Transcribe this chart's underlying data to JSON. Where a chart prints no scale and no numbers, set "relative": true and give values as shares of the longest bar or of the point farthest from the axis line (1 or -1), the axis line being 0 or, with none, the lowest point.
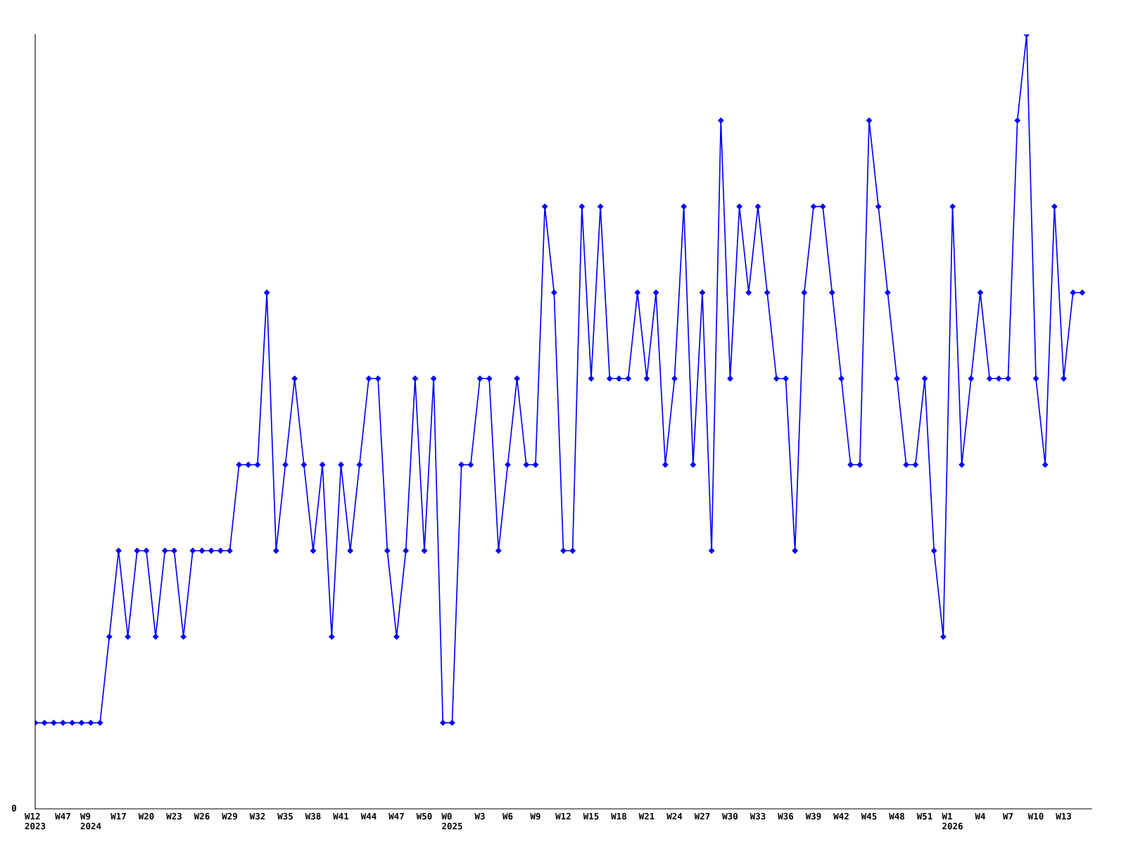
{
  "chart_data": {
    "type": "line",
    "relative": true,
    "annotations": [
      "0"
    ],
    "grid": false,
    "legend": false,
    "marker": "diamond",
    "line_style": "solid",
    "categories": [
      "W12\n2023",
      null,
      null,
      "W47",
      null,
      null,
      "W9\n2024",
      null,
      null,
      "W17",
      null,
      null,
      "W20",
      null,
      null,
      "W23",
      null,
      null,
      "W26",
      null,
      null,
      "W29",
      null,
      null,
      "W32",
      null,
      null,
      "W35",
      null,
      null,
      "W38",
      null,
      null,
      "W41",
      null,
      null,
      "W44",
      null,
      null,
      "W47",
      null,
      null,
      "W50",
      null,
      null,
      "W0\n2025",
      null,
      null,
      "W3",
      null,
      null,
      "W6",
      null,
      null,
      "W9",
      null,
      null,
      "W12",
      null,
      null,
      "W15",
      null,
      null,
      "W18",
      null,
      null,
      "W21",
      null,
      null,
      "W24",
      null,
      null,
      "W27",
      null,
      null,
      "W30",
      null,
      null,
      "W33",
      null,
      null,
      "W36",
      null,
      null,
      "W39",
      null,
      null,
      "W42",
      null,
      null,
      "W45",
      null,
      null,
      "W48",
      null,
      null,
      "W51",
      null,
      null,
      "W1\n2026",
      null,
      null,
      "W4",
      null,
      null,
      "W7",
      null,
      null,
      "W10",
      null,
      null,
      "W13",
      null,
      null
    ],
    "series": [
      {
        "color": "#0000ff",
        "values": [
          0.1111,
          0.1111,
          0.1111,
          0.1111,
          0.1111,
          0.1111,
          0.1111,
          0.1111,
          0.2222,
          0.3333,
          0.2222,
          0.3333,
          0.3333,
          0.2222,
          0.3333,
          0.3333,
          0.2222,
          0.3333,
          0.3333,
          0.3333,
          0.3333,
          0.3333,
          0.4444,
          0.4444,
          0.4444,
          0.6667,
          0.3333,
          0.4444,
          0.5556,
          0.4444,
          0.3333,
          0.4444,
          0.2222,
          0.4444,
          0.3333,
          0.4444,
          0.5556,
          0.5556,
          0.3333,
          0.2222,
          0.3333,
          0.5556,
          0.3333,
          0.5556,
          0.1111,
          0.1111,
          0.4444,
          0.4444,
          0.5556,
          0.5556,
          0.3333,
          0.4444,
          0.5556,
          0.4444,
          0.4444,
          0.7778,
          0.6667,
          0.3333,
          0.3333,
          0.7778,
          0.5556,
          0.7778,
          0.5556,
          0.5556,
          0.5556,
          0.6667,
          0.5556,
          0.6667,
          0.4444,
          0.5556,
          0.7778,
          0.4444,
          0.6667,
          0.3333,
          0.8889,
          0.5556,
          0.7778,
          0.6667,
          0.7778,
          0.6667,
          0.5556,
          0.5556,
          0.3333,
          0.6667,
          0.7778,
          0.7778,
          0.6667,
          0.5556,
          0.4444,
          0.4444,
          0.8889,
          0.7778,
          0.6667,
          0.5556,
          0.4444,
          0.4444,
          0.5556,
          0.3333,
          0.2222,
          0.7778,
          0.4444,
          0.5556,
          0.6667,
          0.5556,
          0.5556,
          0.5556,
          0.8889,
          1,
          0.5556,
          0.4444,
          0.7778,
          0.5556,
          0.6667,
          0.6667
        ]
      }
    ]
  }
}
